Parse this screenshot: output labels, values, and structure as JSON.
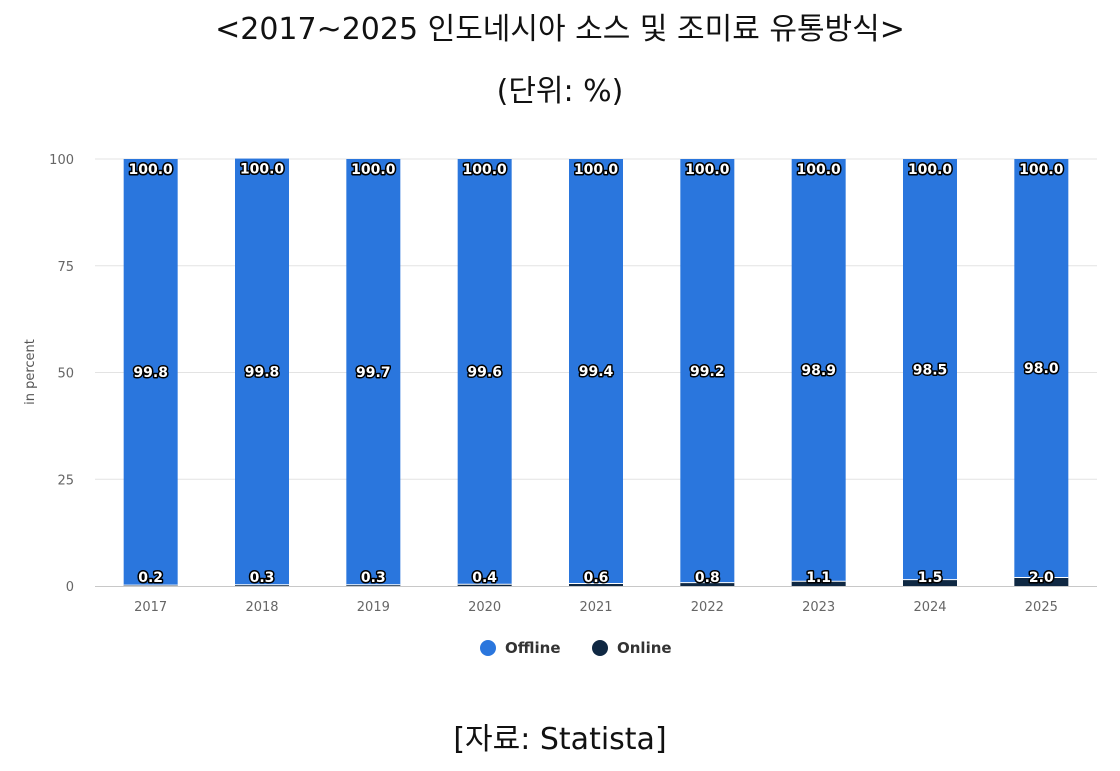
{
  "header": {
    "title": "<2017~2025 인도네시아 소스 및 조미료 유통방식>",
    "subtitle": "(단위: %)"
  },
  "footer": {
    "source": "[자료: Statista]"
  },
  "chart_data": {
    "type": "bar",
    "stacked": true,
    "categories": [
      "2017",
      "2018",
      "2019",
      "2020",
      "2021",
      "2022",
      "2023",
      "2024",
      "2025"
    ],
    "series": [
      {
        "name": "Offline",
        "color": "#2a76dd",
        "values": [
          99.8,
          99.8,
          99.7,
          99.6,
          99.4,
          99.2,
          98.9,
          98.5,
          98.0
        ]
      },
      {
        "name": "Online",
        "color": "#0f2843",
        "values": [
          0.2,
          0.3,
          0.3,
          0.4,
          0.6,
          0.8,
          1.1,
          1.5,
          2.0
        ]
      }
    ],
    "totals": [
      "100.0",
      "100.0",
      "100.0",
      "100.0",
      "100.0",
      "100.0",
      "100.0",
      "100.0",
      "100.0"
    ],
    "offline_labels": [
      "99.8",
      "99.8",
      "99.7",
      "99.6",
      "99.4",
      "99.2",
      "98.9",
      "98.5",
      "98.0"
    ],
    "online_labels": [
      "0.2",
      "0.3",
      "0.3",
      "0.4",
      "0.6",
      "0.8",
      "1.1",
      "1.5",
      "2.0"
    ],
    "ylabel": "in percent",
    "ylim": [
      0,
      100
    ],
    "yticks": [
      0,
      25,
      50,
      75,
      100
    ],
    "grid": true,
    "legend_position": "bottom-center"
  }
}
